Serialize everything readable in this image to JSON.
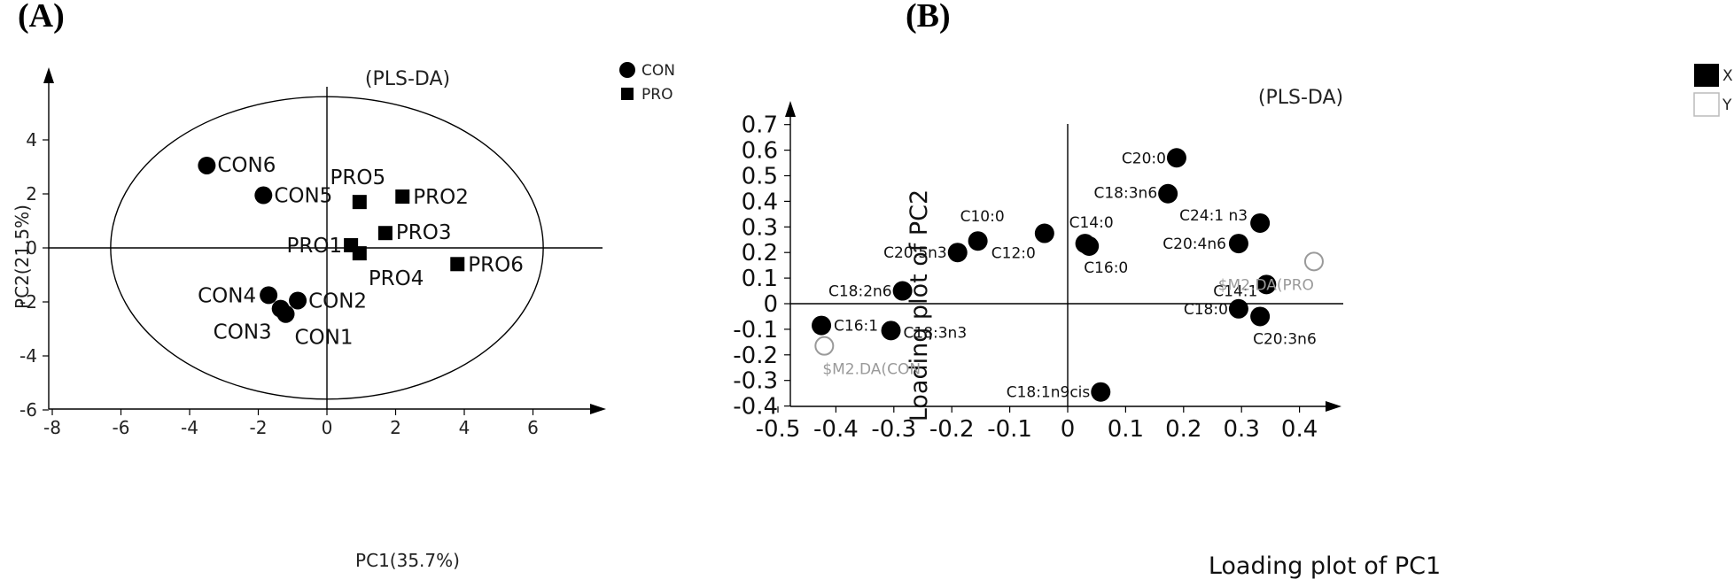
{
  "panel_labels": {
    "a": "(A)",
    "b": "(B)"
  },
  "chart_data": [
    {
      "type": "scatter",
      "title": "(PLS-DA)",
      "xlabel": "PC1(35.7%)",
      "ylabel": "PC2(21.5%)",
      "xlim": [
        -8,
        8
      ],
      "ylim": [
        -6,
        6
      ],
      "xticks": [
        "-8",
        "-6",
        "-4",
        "-2",
        "0",
        "2",
        "4",
        "6"
      ],
      "yticks": [
        "-6",
        "-4",
        "-2",
        "0",
        "2",
        "4"
      ],
      "legend_position": "top-right",
      "legend": [
        {
          "label": "CON",
          "marker": "circle"
        },
        {
          "label": "PRO",
          "marker": "square"
        }
      ],
      "confidence_ellipse": {
        "center": [
          0,
          0
        ],
        "rx": 6.3,
        "ry": 5.6
      },
      "series": [
        {
          "name": "CON",
          "marker": "circle",
          "points": [
            {
              "label": "CON6",
              "x": -3.5,
              "y": 3.05
            },
            {
              "label": "CON5",
              "x": -1.85,
              "y": 1.95
            },
            {
              "label": "CON4",
              "x": -1.7,
              "y": -1.75
            },
            {
              "label": "CON2",
              "x": -0.85,
              "y": -1.95
            },
            {
              "label": "CON3",
              "x": -1.35,
              "y": -2.25
            },
            {
              "label": "CON1",
              "x": -1.2,
              "y": -2.45
            }
          ]
        },
        {
          "name": "PRO",
          "marker": "square",
          "points": [
            {
              "label": "PRO5",
              "x": 0.95,
              "y": 1.7
            },
            {
              "label": "PRO2",
              "x": 2.2,
              "y": 1.9
            },
            {
              "label": "PRO3",
              "x": 1.7,
              "y": 0.55
            },
            {
              "label": "PRO1",
              "x": 0.7,
              "y": 0.1
            },
            {
              "label": "PRO4",
              "x": 0.95,
              "y": -0.2
            },
            {
              "label": "PRO6",
              "x": 3.8,
              "y": -0.6
            }
          ]
        }
      ]
    },
    {
      "type": "scatter",
      "title": "(PLS-DA)",
      "xlabel": "Loading plot of PC1",
      "ylabel": "Loading plot of PC2",
      "xlim": [
        -0.5,
        0.5
      ],
      "ylim": [
        -0.4,
        0.75
      ],
      "xticks": [
        "-0.5",
        "-0.4",
        "-0.3",
        "-0.2",
        "-0.1",
        "0",
        "0.1",
        "0.2",
        "0.3",
        "0.4"
      ],
      "yticks": [
        "-0.4",
        "-0.3",
        "-0.2",
        "-0.1",
        "0",
        "0.1",
        "0.2",
        "0.3",
        "0.4",
        "0.5",
        "0.6",
        "0.7"
      ],
      "legend_position": "top-right",
      "legend": [
        {
          "label": "X",
          "marker": "filled-square"
        },
        {
          "label": "Y",
          "marker": "open-square"
        }
      ],
      "series": [
        {
          "name": "X",
          "marker": "filled-circle",
          "points": [
            {
              "label": "C20:0",
              "x": 0.188,
              "y": 0.57
            },
            {
              "label": "C18:3n6",
              "x": 0.173,
              "y": 0.43
            },
            {
              "label": "C24:1 n3",
              "x": 0.332,
              "y": 0.315
            },
            {
              "label": "C20:4n6",
              "x": 0.295,
              "y": 0.235
            },
            {
              "label": "C14:0",
              "x": 0.03,
              "y": 0.235
            },
            {
              "label": "C16:0",
              "x": 0.037,
              "y": 0.225
            },
            {
              "label": "C12:0",
              "x": -0.04,
              "y": 0.275
            },
            {
              "label": "C10:0",
              "x": -0.155,
              "y": 0.245
            },
            {
              "label": "C20:5n3",
              "x": -0.19,
              "y": 0.2
            },
            {
              "label": "C18:2n6",
              "x": -0.285,
              "y": 0.05
            },
            {
              "label": "C14:1",
              "x": 0.343,
              "y": 0.075
            },
            {
              "label": "C18:0",
              "x": 0.295,
              "y": -0.02
            },
            {
              "label": "C20:3n6",
              "x": 0.332,
              "y": -0.05
            },
            {
              "label": "C16:1",
              "x": -0.425,
              "y": -0.085
            },
            {
              "label": "C18:3n3",
              "x": -0.305,
              "y": -0.105
            },
            {
              "label": "C18:1n9cis",
              "x": 0.057,
              "y": -0.345
            }
          ]
        },
        {
          "name": "Y",
          "marker": "open-circle",
          "points": [
            {
              "label": "$M2.DA(PRO",
              "x": 0.425,
              "y": 0.165
            },
            {
              "label": "$M2.DA(CON",
              "x": -0.42,
              "y": -0.165
            }
          ]
        }
      ]
    }
  ]
}
